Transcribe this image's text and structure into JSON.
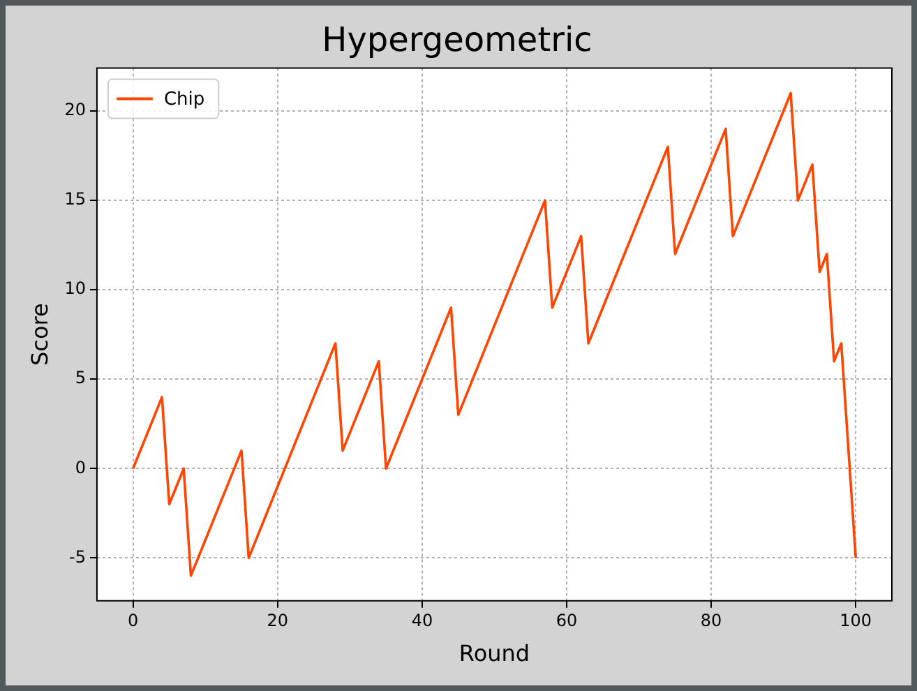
{
  "chart_data": {
    "type": "line",
    "title": "Hypergeometric",
    "xlabel": "Round",
    "ylabel": "Score",
    "x": [
      0,
      4,
      5,
      7,
      8,
      15,
      16,
      28,
      29,
      34,
      35,
      44,
      45,
      57,
      58,
      62,
      63,
      74,
      75,
      82,
      83,
      91,
      92,
      94,
      95,
      96,
      97,
      98,
      100
    ],
    "series": [
      {
        "name": "Chip",
        "color": "#ff4500",
        "values": [
          0,
          4,
          -2,
          0,
          -6,
          1,
          -5,
          7,
          1,
          6,
          0,
          9,
          3,
          15,
          9,
          13,
          7,
          18,
          12,
          19,
          13,
          21,
          15,
          17,
          11,
          12,
          6,
          7,
          -5
        ]
      }
    ],
    "xlim": [
      -5,
      105
    ],
    "xticks": [
      0,
      20,
      40,
      60,
      80,
      100
    ],
    "ylim": [
      -7.4,
      22.4
    ],
    "yticks": [
      -5,
      0,
      5,
      10,
      15,
      20
    ],
    "grid": true,
    "legend": "top left",
    "marker": "none",
    "line_style": "solid"
  }
}
